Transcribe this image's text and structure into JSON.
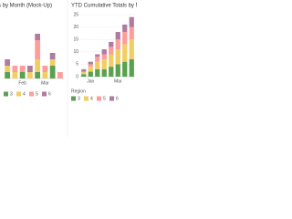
{
  "chart_data": [
    {
      "type": "bar",
      "stacked": true,
      "title": "s by Month (Mock-Up)",
      "categories": [
        null,
        null,
        "Feb",
        null,
        null,
        "Mar",
        null,
        null
      ],
      "series": [
        {
          "name": "3",
          "color": "#59a14f",
          "values": [
            1,
            0,
            1,
            0,
            1,
            0,
            2,
            0
          ]
        },
        {
          "name": "4",
          "color": "#f1ce63",
          "values": [
            1,
            1,
            0,
            1,
            2,
            1,
            1,
            0
          ]
        },
        {
          "name": "5",
          "color": "#ff9d9a",
          "values": [
            0,
            1,
            1,
            0,
            3,
            1,
            0,
            1
          ]
        },
        {
          "name": "6",
          "color": "#b07aa1",
          "values": [
            1,
            0,
            0,
            1,
            1,
            0,
            1,
            0
          ]
        }
      ],
      "ylim": [
        0,
        10
      ],
      "grid": false
    },
    {
      "type": "bar",
      "stacked": true,
      "title": "YTD Cumulative Totals by Mo",
      "categories": [
        null,
        "Jan",
        null,
        null,
        null,
        "Mar",
        null,
        null
      ],
      "series": [
        {
          "name": "3",
          "color": "#59a14f",
          "values": [
            1,
            2,
            3,
            3,
            4,
            5,
            6,
            7
          ]
        },
        {
          "name": "4",
          "color": "#f1ce63",
          "values": [
            1,
            2,
            3,
            4,
            5,
            6,
            7,
            8
          ]
        },
        {
          "name": "5",
          "color": "#ff9d9a",
          "values": [
            0,
            1,
            2,
            2,
            3,
            4,
            5,
            5
          ]
        },
        {
          "name": "6",
          "color": "#b07aa1",
          "values": [
            1,
            1,
            1,
            2,
            2,
            3,
            3,
            4
          ]
        }
      ],
      "ylim": [
        0,
        25
      ],
      "yticks": [
        0,
        5,
        10,
        15,
        20,
        25
      ],
      "grid": true,
      "legend_title": "Region"
    }
  ]
}
